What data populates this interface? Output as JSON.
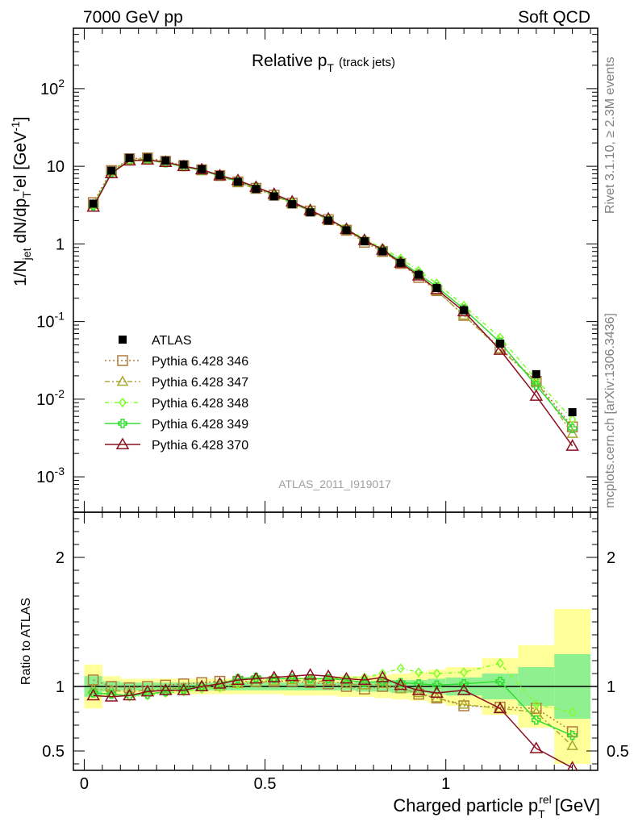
{
  "header": {
    "left": "7000 GeV pp",
    "right": "Soft QCD"
  },
  "side_text": {
    "rivet": "Rivet 3.1.10, ≥ 2.3M events",
    "mcplots": "mcplots.cern.ch [arXiv:1306.3436]"
  },
  "colors": {
    "atlas": "#000000",
    "p346": "#b07a3a",
    "p347": "#a8a830",
    "p348": "#80ff2a",
    "p349": "#33dd33",
    "p370": "#8b1020",
    "band_inner": "#8ef08e",
    "band_outer": "#ffff99"
  },
  "chart_data": [
    {
      "type": "line",
      "title": "Relative p_T (track jets)",
      "title_main": "Relative p",
      "title_sub": "T",
      "title_paren": "(track jets)",
      "ylabel": "1/N_jet dN/dp_T^rel [GeV^-1]",
      "xlabel": "",
      "y_scale": "log",
      "ylim": [
        0.00035,
        600
      ],
      "xlim": [
        -0.03,
        1.42
      ],
      "y_ticks": [
        "10^-3",
        "10^-2",
        "10^-1",
        "1",
        "10",
        "10^2"
      ],
      "legend_position": "bottom-left",
      "watermark": "ATLAS_2011_I919017",
      "x": [
        0.025,
        0.075,
        0.125,
        0.175,
        0.225,
        0.275,
        0.325,
        0.375,
        0.425,
        0.475,
        0.525,
        0.575,
        0.625,
        0.675,
        0.725,
        0.775,
        0.825,
        0.875,
        0.925,
        0.975,
        1.05,
        1.15,
        1.25,
        1.35
      ],
      "series": [
        {
          "name": "ATLAS",
          "key": "atlas",
          "values": [
            3.3,
            8.8,
            12.8,
            12.9,
            11.8,
            10.5,
            9.2,
            7.7,
            6.3,
            5.1,
            4.1,
            3.25,
            2.55,
            2.0,
            1.5,
            1.08,
            0.8,
            0.57,
            0.4,
            0.27,
            0.14,
            0.052,
            0.021,
            0.0068
          ]
        },
        {
          "name": "Pythia 6.428 346",
          "key": "p346",
          "values": [
            3.4,
            8.8,
            12.5,
            12.8,
            11.6,
            10.2,
            9.0,
            7.6,
            6.3,
            5.2,
            4.25,
            3.35,
            2.65,
            2.05,
            1.5,
            1.05,
            0.8,
            0.56,
            0.37,
            0.25,
            0.12,
            0.046,
            0.017,
            0.0044
          ]
        },
        {
          "name": "Pythia 6.428 347",
          "key": "p347",
          "values": [
            3.2,
            8.5,
            12.2,
            12.5,
            11.3,
            10.0,
            8.9,
            7.5,
            6.2,
            5.1,
            4.2,
            3.35,
            2.65,
            2.05,
            1.5,
            1.1,
            0.82,
            0.56,
            0.39,
            0.25,
            0.12,
            0.044,
            0.017,
            0.0036
          ]
        },
        {
          "name": "Pythia 6.428 348",
          "key": "p348",
          "values": [
            3.1,
            8.2,
            11.7,
            12.0,
            11.0,
            9.8,
            8.8,
            7.5,
            6.3,
            5.3,
            4.3,
            3.4,
            2.7,
            2.1,
            1.6,
            1.15,
            0.88,
            0.65,
            0.45,
            0.31,
            0.16,
            0.062,
            0.018,
            0.0055
          ]
        },
        {
          "name": "Pythia 6.428 349",
          "key": "p349",
          "values": [
            3.1,
            8.3,
            11.8,
            12.1,
            11.1,
            9.9,
            8.9,
            7.5,
            6.4,
            5.4,
            4.3,
            3.4,
            2.7,
            2.1,
            1.56,
            1.1,
            0.85,
            0.6,
            0.41,
            0.28,
            0.145,
            0.054,
            0.015,
            0.0042
          ]
        },
        {
          "name": "Pythia 6.428 370",
          "key": "p370",
          "values": [
            3.0,
            8.1,
            11.8,
            12.1,
            11.3,
            10.0,
            9.1,
            7.6,
            6.6,
            5.4,
            4.4,
            3.5,
            2.72,
            2.12,
            1.55,
            1.12,
            0.84,
            0.57,
            0.39,
            0.26,
            0.135,
            0.043,
            0.011,
            0.0025
          ]
        }
      ]
    },
    {
      "type": "line",
      "title": "",
      "ylabel": "Ratio to ATLAS",
      "xlabel": "Charged particle p_T^rel [GeV]",
      "xlabel_main": "Charged particle p",
      "xlabel_sup": "rel",
      "xlabel_sub": "T",
      "xlabel_unit": "[GeV]",
      "ylim": [
        0.35,
        2.35
      ],
      "xlim": [
        -0.03,
        1.42
      ],
      "x_ticks": [
        "0",
        "0.5",
        "1"
      ],
      "y_ticks": [
        "0.5",
        "1",
        "2"
      ],
      "x": [
        0.025,
        0.075,
        0.125,
        0.175,
        0.225,
        0.275,
        0.325,
        0.375,
        0.425,
        0.475,
        0.525,
        0.575,
        0.625,
        0.675,
        0.725,
        0.775,
        0.825,
        0.875,
        0.925,
        0.975,
        1.05,
        1.15,
        1.25,
        1.35
      ],
      "uncertainty_band": {
        "bins": [
          0.0,
          0.05,
          0.1,
          0.15,
          0.2,
          0.25,
          0.3,
          0.35,
          0.4,
          0.45,
          0.5,
          0.55,
          0.6,
          0.65,
          0.7,
          0.75,
          0.8,
          0.85,
          0.9,
          0.95,
          1.0,
          1.1,
          1.2,
          1.3,
          1.4
        ],
        "inner": [
          0.08,
          0.04,
          0.03,
          0.03,
          0.03,
          0.03,
          0.03,
          0.03,
          0.03,
          0.03,
          0.03,
          0.03,
          0.03,
          0.03,
          0.03,
          0.04,
          0.04,
          0.05,
          0.05,
          0.06,
          0.07,
          0.1,
          0.15,
          0.25
        ],
        "outer": [
          0.17,
          0.08,
          0.06,
          0.06,
          0.06,
          0.06,
          0.06,
          0.06,
          0.06,
          0.06,
          0.06,
          0.07,
          0.07,
          0.07,
          0.08,
          0.08,
          0.09,
          0.1,
          0.11,
          0.13,
          0.15,
          0.22,
          0.32,
          0.6
        ]
      },
      "series": [
        {
          "name": "Pythia 6.428 346",
          "key": "p346",
          "values": [
            1.05,
            1.0,
            0.99,
            1.0,
            1.01,
            1.02,
            1.03,
            1.04,
            1.04,
            1.04,
            1.04,
            1.04,
            1.03,
            1.02,
            1.0,
            0.98,
            1.0,
            0.99,
            0.94,
            0.91,
            0.85,
            0.84,
            0.83,
            0.65
          ]
        },
        {
          "name": "Pythia 6.428 347",
          "key": "p347",
          "values": [
            0.98,
            0.97,
            0.96,
            0.97,
            0.98,
            0.99,
            1.0,
            1.0,
            1.02,
            1.03,
            1.04,
            1.05,
            1.04,
            1.04,
            1.02,
            1.01,
            1.02,
            0.98,
            0.95,
            0.91,
            0.86,
            0.83,
            0.8,
            0.54
          ]
        },
        {
          "name": "Pythia 6.428 348",
          "key": "p348",
          "values": [
            0.95,
            0.94,
            0.92,
            0.93,
            0.95,
            0.96,
            0.98,
            0.99,
            1.02,
            1.05,
            1.05,
            1.06,
            1.06,
            1.06,
            1.07,
            1.07,
            1.1,
            1.14,
            1.11,
            1.1,
            1.11,
            1.18,
            0.86,
            0.8
          ]
        },
        {
          "name": "Pythia 6.428 349",
          "key": "p349",
          "values": [
            0.95,
            0.94,
            0.93,
            0.94,
            0.96,
            0.98,
            1.0,
            1.02,
            1.06,
            1.07,
            1.06,
            1.06,
            1.06,
            1.06,
            1.05,
            1.03,
            1.04,
            1.03,
            1.02,
            1.01,
            1.02,
            1.04,
            0.74,
            0.62
          ]
        },
        {
          "name": "Pythia 6.428 370",
          "key": "p370",
          "values": [
            0.93,
            0.92,
            0.93,
            0.96,
            0.97,
            0.97,
            1.0,
            1.02,
            1.05,
            1.06,
            1.07,
            1.08,
            1.09,
            1.08,
            1.06,
            1.05,
            1.07,
            1.01,
            0.97,
            0.95,
            0.97,
            0.83,
            0.52,
            0.37
          ]
        }
      ]
    }
  ]
}
